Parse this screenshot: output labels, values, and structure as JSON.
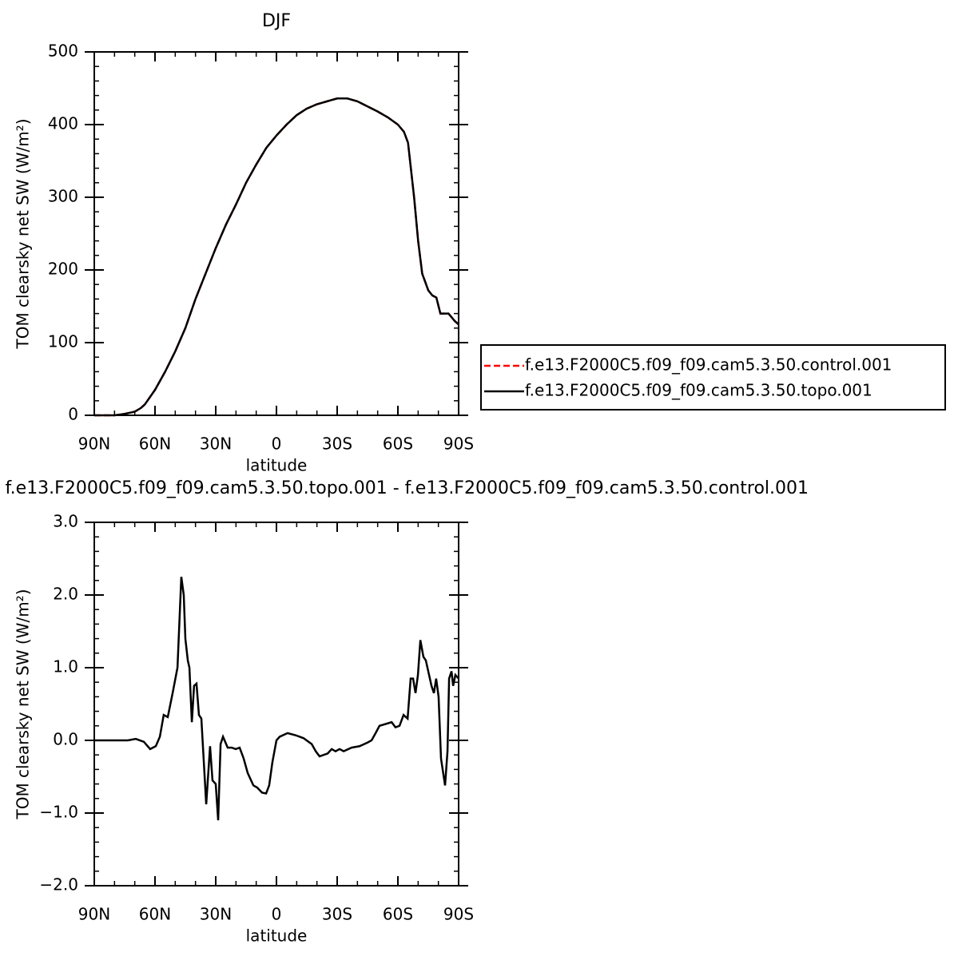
{
  "chart_data": [
    {
      "type": "line",
      "title": "DJF",
      "xlabel": "latitude",
      "ylabel": "TOM clearsky net SW (W/m²)",
      "x": [
        90,
        85,
        80,
        75,
        70,
        67,
        65,
        60,
        55,
        50,
        45,
        40,
        35,
        30,
        25,
        20,
        15,
        10,
        5,
        0,
        -5,
        -10,
        -15,
        -20,
        -25,
        -30,
        -35,
        -40,
        -45,
        -50,
        -55,
        -60,
        -63,
        -65,
        -68,
        -70,
        -72,
        -75,
        -77,
        -79,
        -81,
        -85,
        -88,
        -90
      ],
      "series": [
        {
          "name": "f.e13.F2000C5.f09_f09.cam5.3.50.control.001",
          "color": "#ff0000",
          "line_style": "dashed",
          "values": [
            0,
            0,
            0,
            2,
            5,
            10,
            15,
            35,
            60,
            88,
            120,
            160,
            195,
            230,
            262,
            290,
            320,
            345,
            368,
            385,
            400,
            413,
            422,
            428,
            432,
            436,
            436,
            432,
            425,
            418,
            410,
            400,
            390,
            375,
            300,
            240,
            195,
            172,
            165,
            162,
            140,
            140,
            130,
            125
          ]
        },
        {
          "name": "f.e13.F2000C5.f09_f09.cam5.3.50.topo.001",
          "color": "#000000",
          "line_style": "solid",
          "values": [
            0,
            0,
            0,
            2,
            5,
            10,
            15,
            35,
            60,
            88,
            120,
            160,
            195,
            230,
            262,
            290,
            320,
            345,
            368,
            385,
            400,
            413,
            422,
            428,
            432,
            436,
            436,
            432,
            425,
            418,
            410,
            400,
            390,
            375,
            300,
            240,
            195,
            172,
            165,
            162,
            140,
            140,
            130,
            125
          ]
        }
      ],
      "xlim": [
        90,
        -90
      ],
      "xticks": [
        {
          "value": 90,
          "label": "90N"
        },
        {
          "value": 60,
          "label": "60N"
        },
        {
          "value": 30,
          "label": "30N"
        },
        0,
        {
          "value": -30,
          "label": "30S"
        },
        {
          "value": -60,
          "label": "60S"
        },
        {
          "value": -90,
          "label": "90S"
        }
      ],
      "ylim": [
        0,
        500
      ],
      "yticks": [
        0,
        100,
        200,
        300,
        400,
        500
      ],
      "legend": "outside right"
    },
    {
      "type": "line",
      "title": "f.e13.F2000C5.f09_f09.cam5.3.50.topo.001 - f.e13.F2000C5.f09_f09.cam5.3.50.control.001",
      "xlabel": "latitude",
      "ylabel": "TOM clearsky net SW (W/m²)",
      "x": [
        90,
        77.4,
        73.4,
        69.5,
        65.5,
        62.4,
        59.6,
        57.6,
        55.7,
        53.7,
        51.3,
        48.9,
        47.0,
        45.8,
        45.0,
        43.8,
        43.0,
        41.8,
        40.7,
        39.5,
        38.3,
        37.1,
        34.7,
        32.8,
        31.6,
        30.0,
        28.8,
        27.6,
        26.4,
        24.1,
        22.1,
        20.1,
        18.2,
        16.2,
        14.2,
        11.4,
        9.5,
        7.1,
        5.1,
        3.6,
        2.0,
        0,
        -1.6,
        -3.9,
        -5.5,
        -9.5,
        -13.4,
        -17.4,
        -19.4,
        -21.3,
        -25.3,
        -27.3,
        -29.2,
        -31.2,
        -33.2,
        -37.1,
        -41.1,
        -45.0,
        -47.0,
        -49.0,
        -50.9,
        -56.9,
        -58.8,
        -60.8,
        -62.8,
        -64.8,
        -66.3,
        -67.5,
        -68.7,
        -69.9,
        -71.1,
        -72.6,
        -73.8,
        -76.6,
        -77.8,
        -78.9,
        -80.1,
        -81.3,
        -83.3,
        -84.5,
        -85.3,
        -86.5,
        -87.3,
        -88.4,
        -90
      ],
      "color": "#000000",
      "values": [
        0,
        0,
        0,
        0.02,
        -0.02,
        -0.12,
        -0.08,
        0.05,
        0.35,
        0.32,
        0.65,
        1.0,
        2.25,
        2.0,
        1.4,
        1.1,
        1.0,
        0.25,
        0.75,
        0.78,
        0.35,
        0.3,
        -0.88,
        -0.08,
        -0.55,
        -0.6,
        -1.1,
        -0.05,
        0.05,
        -0.1,
        -0.1,
        -0.12,
        -0.1,
        -0.25,
        -0.45,
        -0.62,
        -0.65,
        -0.72,
        -0.73,
        -0.62,
        -0.3,
        0.0,
        0.05,
        0.08,
        0.1,
        0.07,
        0.03,
        -0.05,
        -0.15,
        -0.22,
        -0.18,
        -0.12,
        -0.15,
        -0.12,
        -0.15,
        -0.1,
        -0.08,
        -0.03,
        0.0,
        0.1,
        0.2,
        0.25,
        0.18,
        0.2,
        0.35,
        0.3,
        0.85,
        0.85,
        0.65,
        0.9,
        1.38,
        1.15,
        1.1,
        0.75,
        0.65,
        0.85,
        0.6,
        -0.25,
        -0.62,
        -0.15,
        0.85,
        0.95,
        0.75,
        0.9,
        0.85
      ],
      "xlim": [
        90,
        -90
      ],
      "xticks": [
        {
          "value": 90,
          "label": "90N"
        },
        {
          "value": 60,
          "label": "60N"
        },
        {
          "value": 30,
          "label": "30N"
        },
        0,
        {
          "value": -30,
          "label": "30S"
        },
        {
          "value": -60,
          "label": "60S"
        },
        {
          "value": -90,
          "label": "90S"
        }
      ],
      "ylim": [
        -2,
        3
      ],
      "yticks": [
        {
          "value": -2,
          "label": "−2.0"
        },
        {
          "value": -1,
          "label": "−1.0"
        },
        {
          "value": 0,
          "label": "0.0"
        },
        {
          "value": 1,
          "label": "1.0"
        },
        {
          "value": 2,
          "label": "2.0"
        },
        {
          "value": 3,
          "label": "3.0"
        }
      ]
    }
  ]
}
